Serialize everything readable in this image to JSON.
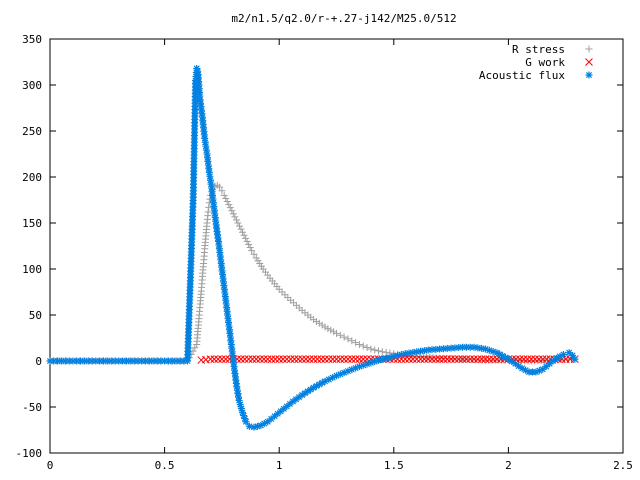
{
  "chart_data": {
    "type": "scatter",
    "title": "m2/n1.5/q2.0/r-+.27-j142/M25.0/512",
    "xlabel": "",
    "ylabel": "",
    "xlim": [
      0,
      2.5
    ],
    "ylim": [
      -100,
      350
    ],
    "x_ticks": [
      "0",
      "0.5",
      "1",
      "1.5",
      "2",
      "2.5"
    ],
    "y_ticks": [
      "-100",
      "-50",
      "0",
      "50",
      "100",
      "150",
      "200",
      "250",
      "300",
      "350"
    ],
    "grid": false,
    "legend_position": "top-right",
    "series": [
      {
        "name": "R stress",
        "color": "#a0a0a0",
        "marker": "plus",
        "points": [
          [
            0.0,
            0
          ],
          [
            0.1,
            0
          ],
          [
            0.2,
            0
          ],
          [
            0.3,
            0
          ],
          [
            0.4,
            0
          ],
          [
            0.5,
            0
          ],
          [
            0.6,
            0
          ],
          [
            0.64,
            18
          ],
          [
            0.645,
            32
          ],
          [
            0.65,
            46
          ],
          [
            0.655,
            62
          ],
          [
            0.66,
            76
          ],
          [
            0.665,
            92
          ],
          [
            0.67,
            106
          ],
          [
            0.675,
            122
          ],
          [
            0.68,
            136
          ],
          [
            0.685,
            150
          ],
          [
            0.69,
            162
          ],
          [
            0.695,
            172
          ],
          [
            0.7,
            180
          ],
          [
            0.71,
            186
          ],
          [
            0.72,
            190
          ],
          [
            0.73,
            191
          ],
          [
            0.74,
            189
          ],
          [
            0.75,
            185
          ],
          [
            0.76,
            180
          ],
          [
            0.78,
            170
          ],
          [
            0.8,
            160
          ],
          [
            0.82,
            150
          ],
          [
            0.84,
            140
          ],
          [
            0.86,
            130
          ],
          [
            0.88,
            120
          ],
          [
            0.9,
            112
          ],
          [
            0.93,
            100
          ],
          [
            0.96,
            90
          ],
          [
            1.0,
            78
          ],
          [
            1.05,
            66
          ],
          [
            1.1,
            55
          ],
          [
            1.15,
            45
          ],
          [
            1.2,
            37
          ],
          [
            1.25,
            30
          ],
          [
            1.3,
            24
          ],
          [
            1.35,
            18
          ],
          [
            1.4,
            13
          ],
          [
            1.45,
            10
          ],
          [
            1.5,
            8
          ],
          [
            1.55,
            6
          ],
          [
            1.6,
            5
          ],
          [
            1.7,
            3
          ],
          [
            1.8,
            2
          ],
          [
            1.9,
            1
          ],
          [
            2.0,
            1
          ],
          [
            2.1,
            0
          ],
          [
            2.2,
            1
          ],
          [
            2.29,
            2
          ]
        ]
      },
      {
        "name": "G work",
        "color": "#ff0000",
        "marker": "cross",
        "points": [
          [
            0.66,
            1
          ],
          [
            0.7,
            2
          ],
          [
            0.75,
            2
          ],
          [
            0.8,
            2
          ],
          [
            0.85,
            2
          ],
          [
            0.9,
            2
          ],
          [
            0.95,
            2
          ],
          [
            1.0,
            2
          ],
          [
            1.05,
            2
          ],
          [
            1.1,
            2
          ],
          [
            1.15,
            2
          ],
          [
            1.2,
            2
          ],
          [
            1.25,
            2
          ],
          [
            1.3,
            2
          ],
          [
            1.35,
            2
          ],
          [
            1.4,
            2
          ],
          [
            1.45,
            2
          ],
          [
            1.5,
            2
          ],
          [
            1.55,
            2
          ],
          [
            1.6,
            2
          ],
          [
            1.65,
            2
          ],
          [
            1.7,
            2
          ],
          [
            1.75,
            2
          ],
          [
            1.8,
            2
          ],
          [
            1.85,
            2
          ],
          [
            1.9,
            2
          ],
          [
            1.95,
            2
          ],
          [
            2.0,
            2
          ],
          [
            2.05,
            2
          ],
          [
            2.1,
            2
          ],
          [
            2.15,
            2
          ],
          [
            2.2,
            2
          ],
          [
            2.25,
            2
          ],
          [
            2.29,
            2
          ]
        ]
      },
      {
        "name": "Acoustic flux",
        "color": "#0080e0",
        "marker": "star",
        "points": [
          [
            0.0,
            0
          ],
          [
            0.05,
            0
          ],
          [
            0.1,
            0
          ],
          [
            0.15,
            0
          ],
          [
            0.2,
            0
          ],
          [
            0.25,
            0
          ],
          [
            0.3,
            0
          ],
          [
            0.35,
            0
          ],
          [
            0.4,
            0
          ],
          [
            0.45,
            0
          ],
          [
            0.5,
            0
          ],
          [
            0.55,
            0
          ],
          [
            0.6,
            0
          ],
          [
            0.625,
            178
          ],
          [
            0.635,
            305
          ],
          [
            0.64,
            318
          ],
          [
            0.645,
            315
          ],
          [
            0.65,
            300
          ],
          [
            0.655,
            284
          ],
          [
            0.665,
            265
          ],
          [
            0.675,
            242
          ],
          [
            0.685,
            225
          ],
          [
            0.695,
            205
          ],
          [
            0.705,
            188
          ],
          [
            0.715,
            168
          ],
          [
            0.725,
            148
          ],
          [
            0.735,
            130
          ],
          [
            0.745,
            110
          ],
          [
            0.755,
            90
          ],
          [
            0.765,
            70
          ],
          [
            0.775,
            50
          ],
          [
            0.785,
            30
          ],
          [
            0.795,
            10
          ],
          [
            0.805,
            -10
          ],
          [
            0.815,
            -28
          ],
          [
            0.825,
            -43
          ],
          [
            0.84,
            -56
          ],
          [
            0.855,
            -66
          ],
          [
            0.87,
            -71
          ],
          [
            0.89,
            -72
          ],
          [
            0.92,
            -70
          ],
          [
            0.95,
            -66
          ],
          [
            0.98,
            -60
          ],
          [
            1.02,
            -52
          ],
          [
            1.06,
            -44
          ],
          [
            1.1,
            -37
          ],
          [
            1.15,
            -29
          ],
          [
            1.2,
            -22
          ],
          [
            1.25,
            -16
          ],
          [
            1.3,
            -11
          ],
          [
            1.35,
            -6
          ],
          [
            1.4,
            -2
          ],
          [
            1.45,
            2
          ],
          [
            1.5,
            5
          ],
          [
            1.55,
            8
          ],
          [
            1.6,
            10
          ],
          [
            1.65,
            12
          ],
          [
            1.7,
            13
          ],
          [
            1.75,
            14
          ],
          [
            1.8,
            15
          ],
          [
            1.85,
            15
          ],
          [
            1.9,
            13
          ],
          [
            1.95,
            9
          ],
          [
            2.0,
            2
          ],
          [
            2.03,
            -3
          ],
          [
            2.06,
            -8
          ],
          [
            2.09,
            -12
          ],
          [
            2.12,
            -12
          ],
          [
            2.15,
            -9
          ],
          [
            2.18,
            -3
          ],
          [
            2.21,
            3
          ],
          [
            2.24,
            7
          ],
          [
            2.265,
            9
          ],
          [
            2.28,
            6
          ],
          [
            2.29,
            2
          ]
        ]
      }
    ]
  }
}
